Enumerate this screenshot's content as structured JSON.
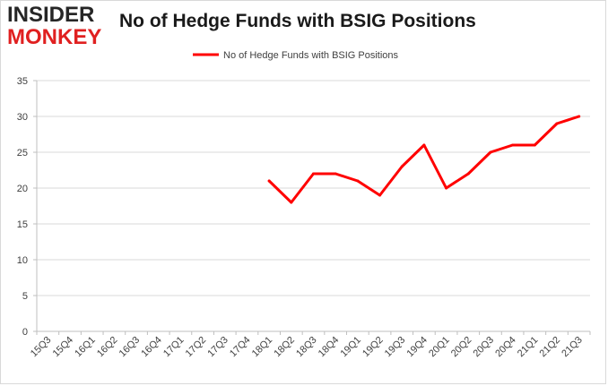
{
  "brand": {
    "line1": "INSIDER",
    "line2": "MONKEY"
  },
  "chart_data": {
    "type": "line",
    "title": "No of Hedge Funds with BSIG Positions",
    "categories": [
      "15Q3",
      "15Q4",
      "16Q1",
      "16Q2",
      "16Q3",
      "16Q4",
      "17Q1",
      "17Q2",
      "17Q3",
      "17Q4",
      "18Q1",
      "18Q2",
      "18Q3",
      "18Q4",
      "19Q1",
      "19Q2",
      "19Q3",
      "19Q4",
      "20Q1",
      "20Q2",
      "20Q3",
      "20Q4",
      "21Q1",
      "21Q2",
      "21Q3"
    ],
    "series": [
      {
        "name": "No of Hedge Funds with BSIG Positions",
        "color": "#ff0000",
        "values": [
          null,
          null,
          null,
          null,
          null,
          null,
          null,
          null,
          null,
          null,
          21,
          18,
          22,
          22,
          21,
          19,
          23,
          26,
          20,
          22,
          25,
          26,
          26,
          29,
          30
        ]
      }
    ],
    "ylim": [
      0,
      35
    ],
    "yticks": [
      0,
      5,
      10,
      15,
      20,
      25,
      30,
      35
    ],
    "grid": true,
    "legend": "top-center"
  }
}
